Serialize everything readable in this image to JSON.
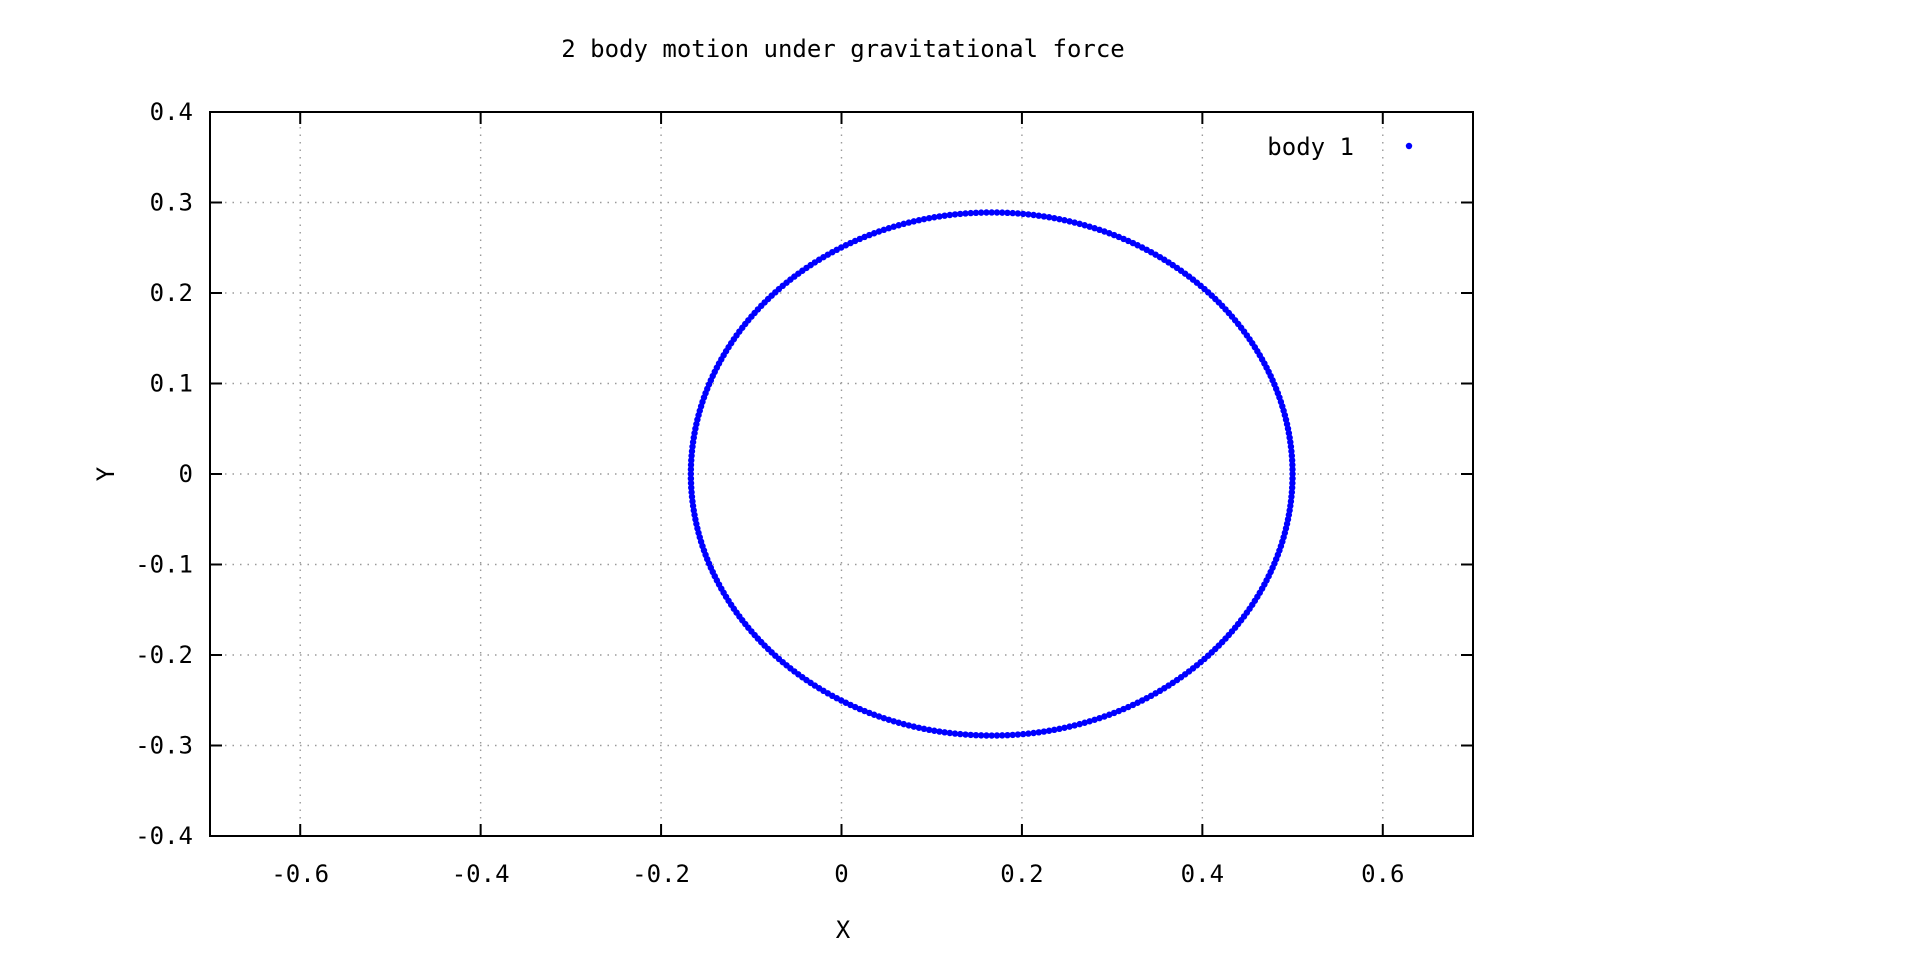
{
  "chart_data": {
    "type": "scatter",
    "title": "2 body motion under gravitational force",
    "xlabel": "X",
    "ylabel": "Y",
    "xlim": [
      -0.7,
      0.7
    ],
    "ylim": [
      -0.4,
      0.4
    ],
    "x_ticks": [
      "-0.6",
      "-0.4",
      "-0.2",
      "0",
      "0.2",
      "0.4",
      "0.6"
    ],
    "x_tick_values": [
      -0.6,
      -0.4,
      -0.2,
      0,
      0.2,
      0.4,
      0.6
    ],
    "y_ticks": [
      "0.4",
      "0.3",
      "0.2",
      "0.1",
      "0",
      "-0.1",
      "-0.2",
      "-0.3",
      "-0.4"
    ],
    "y_tick_values": [
      0.4,
      0.3,
      0.2,
      0.1,
      0,
      -0.1,
      -0.2,
      -0.3,
      -0.4
    ],
    "grid": true,
    "legend_position": "top-right",
    "series": [
      {
        "name": "body 1",
        "color": "#0000ff",
        "marker": "dot",
        "orbit": {
          "shape": "ellipse",
          "x_min": -0.167,
          "x_max": 0.5,
          "y_min": -0.289,
          "y_max": 0.289,
          "center_x": 0.1665,
          "center_y": 0
        },
        "point_count": 360
      }
    ]
  }
}
